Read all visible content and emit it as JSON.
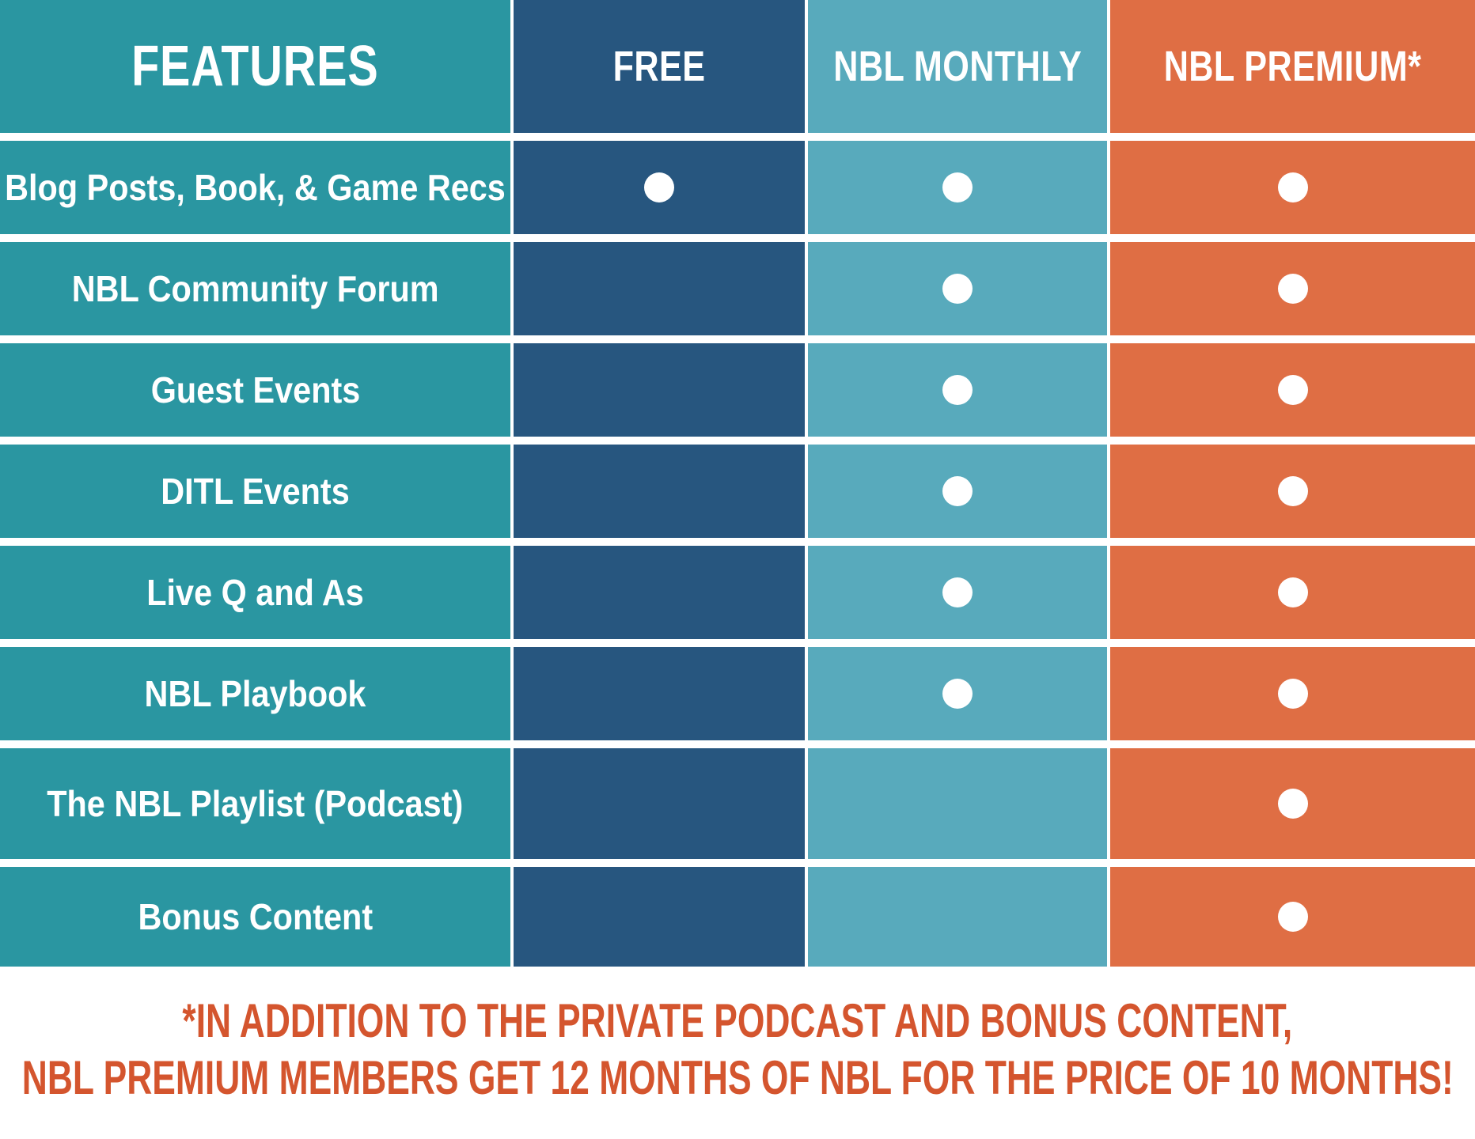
{
  "table": {
    "columns": [
      {
        "key": "features",
        "label": "FEATURES"
      },
      {
        "key": "free",
        "label": "FREE"
      },
      {
        "key": "monthly",
        "label": "NBL MONTHLY"
      },
      {
        "key": "premium",
        "label": "NBL PREMIUM*"
      }
    ],
    "rows": [
      {
        "feature": "Blog Posts, Book, & Game Recs",
        "free": true,
        "monthly": true,
        "premium": true
      },
      {
        "feature": "NBL Community Forum",
        "free": false,
        "monthly": true,
        "premium": true
      },
      {
        "feature": "Guest Events",
        "free": false,
        "monthly": true,
        "premium": true
      },
      {
        "feature": "DITL Events",
        "free": false,
        "monthly": true,
        "premium": true
      },
      {
        "feature": "Live Q and As",
        "free": false,
        "monthly": true,
        "premium": true
      },
      {
        "feature": "NBL Playbook",
        "free": false,
        "monthly": true,
        "premium": true
      },
      {
        "feature": "The NBL Playlist (Podcast)",
        "free": false,
        "monthly": false,
        "premium": true
      },
      {
        "feature": "Bonus Content",
        "free": false,
        "monthly": false,
        "premium": true
      }
    ]
  },
  "icons": {
    "included_marker": "white-dot"
  },
  "footnote": {
    "line1": "*IN ADDITION TO THE PRIVATE PODCAST AND BONUS CONTENT,",
    "line2": "NBL PREMIUM MEMBERS GET 12 MONTHS OF NBL FOR THE PRICE OF 10 MONTHS!"
  },
  "colors": {
    "teal": "#2A96A1",
    "navy": "#27567F",
    "lightblue": "#58AABC",
    "orange": "#DF6E44",
    "footer": "#D4552E",
    "divider": "#FFFFFF"
  }
}
